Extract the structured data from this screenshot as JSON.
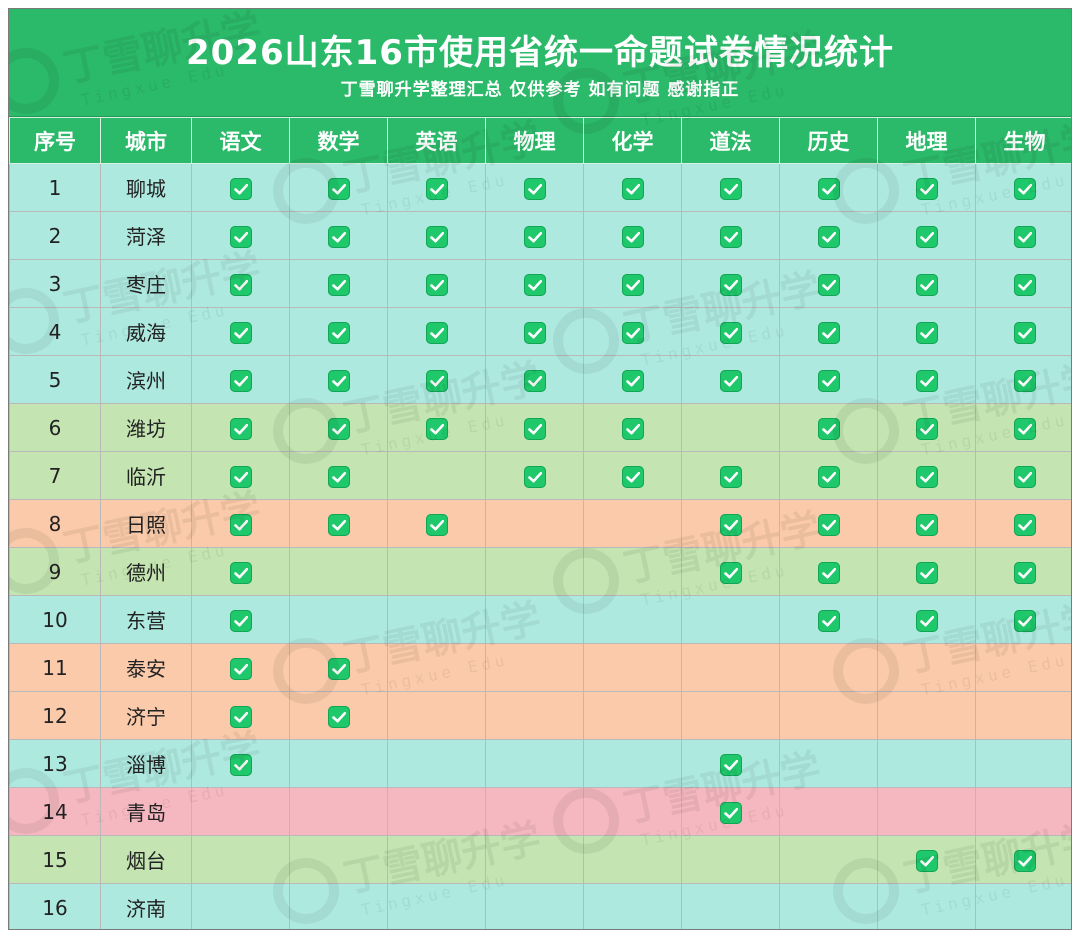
{
  "title": "2026山东16市使用省统一命题试卷情况统计",
  "subtitle": "丁雪聊升学整理汇总  仅供参考  如有问题  感谢指正",
  "watermark": {
    "text": "丁雪聊升学",
    "sub": "Tingxue Edu"
  },
  "columns": [
    "序号",
    "城市",
    "语文",
    "数学",
    "英语",
    "物理",
    "化学",
    "道法",
    "历史",
    "地理",
    "生物"
  ],
  "colors": {
    "header": "#2bb96a",
    "check": "#1ec86b",
    "cyan": "#aee9e0",
    "green": "#c4e5b2",
    "orange": "#fbcaaa",
    "pink": "#f6b8c0"
  },
  "rows": [
    {
      "index": "1",
      "city": "聊城",
      "color": "cyan",
      "checks": [
        true,
        true,
        true,
        true,
        true,
        true,
        true,
        true,
        true
      ]
    },
    {
      "index": "2",
      "city": "菏泽",
      "color": "cyan",
      "checks": [
        true,
        true,
        true,
        true,
        true,
        true,
        true,
        true,
        true
      ]
    },
    {
      "index": "3",
      "city": "枣庄",
      "color": "cyan",
      "checks": [
        true,
        true,
        true,
        true,
        true,
        true,
        true,
        true,
        true
      ]
    },
    {
      "index": "4",
      "city": "威海",
      "color": "cyan",
      "checks": [
        true,
        true,
        true,
        true,
        true,
        true,
        true,
        true,
        true
      ]
    },
    {
      "index": "5",
      "city": "滨州",
      "color": "cyan",
      "checks": [
        true,
        true,
        true,
        true,
        true,
        true,
        true,
        true,
        true
      ]
    },
    {
      "index": "6",
      "city": "潍坊",
      "color": "green",
      "checks": [
        true,
        true,
        true,
        true,
        true,
        false,
        true,
        true,
        true
      ]
    },
    {
      "index": "7",
      "city": "临沂",
      "color": "green",
      "checks": [
        true,
        true,
        false,
        true,
        true,
        true,
        true,
        true,
        true
      ]
    },
    {
      "index": "8",
      "city": "日照",
      "color": "orange",
      "checks": [
        true,
        true,
        true,
        false,
        false,
        true,
        true,
        true,
        true
      ]
    },
    {
      "index": "9",
      "city": "德州",
      "color": "green",
      "checks": [
        true,
        false,
        false,
        false,
        false,
        true,
        true,
        true,
        true
      ]
    },
    {
      "index": "10",
      "city": "东营",
      "color": "cyan",
      "checks": [
        true,
        false,
        false,
        false,
        false,
        false,
        true,
        true,
        true
      ]
    },
    {
      "index": "11",
      "city": "泰安",
      "color": "orange",
      "checks": [
        true,
        true,
        false,
        false,
        false,
        false,
        false,
        false,
        false
      ]
    },
    {
      "index": "12",
      "city": "济宁",
      "color": "orange",
      "checks": [
        true,
        true,
        false,
        false,
        false,
        false,
        false,
        false,
        false
      ]
    },
    {
      "index": "13",
      "city": "淄博",
      "color": "cyan",
      "checks": [
        true,
        false,
        false,
        false,
        false,
        true,
        false,
        false,
        false
      ]
    },
    {
      "index": "14",
      "city": "青岛",
      "color": "pink",
      "checks": [
        false,
        false,
        false,
        false,
        false,
        true,
        false,
        false,
        false
      ]
    },
    {
      "index": "15",
      "city": "烟台",
      "color": "green",
      "checks": [
        false,
        false,
        false,
        false,
        false,
        false,
        false,
        true,
        true
      ]
    },
    {
      "index": "16",
      "city": "济南",
      "color": "cyan",
      "checks": [
        false,
        false,
        false,
        false,
        false,
        false,
        false,
        false,
        false
      ]
    }
  ]
}
